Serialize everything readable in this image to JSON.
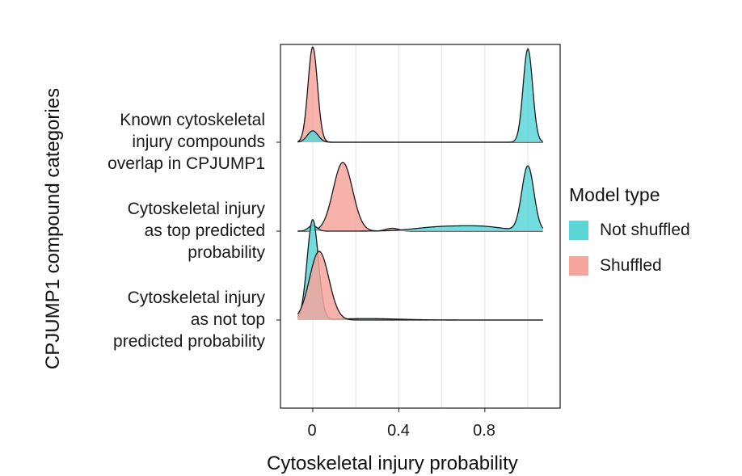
{
  "chart_data": {
    "type": "ridgeline density",
    "title": "",
    "xlabel": "Cytoskeletal injury probability",
    "ylabel": "CPJUMP1 compound categories",
    "x_ticks": [
      "0",
      "0.4",
      "0.8"
    ],
    "x_tick_values": [
      0,
      0.4,
      0.8
    ],
    "xlim": [
      -0.15,
      1.15
    ],
    "grid": "vertical gridlines at 0, 0.2, 0.4, 0.6, 0.8, 1.0",
    "categories": [
      {
        "key": "known",
        "label_lines": [
          "Known cytoskeletal",
          "injury compounds",
          "overlap in CPJUMP1"
        ],
        "ridges": [
          {
            "model": "Shuffled",
            "peaks": [
              {
                "x": 0.0,
                "height": 1.0,
                "sd": 0.022
              }
            ]
          },
          {
            "model": "Not shuffled",
            "peaks": [
              {
                "x": 0.0,
                "height": 0.12,
                "sd": 0.025
              },
              {
                "x": 1.0,
                "height": 0.98,
                "sd": 0.022
              }
            ]
          }
        ]
      },
      {
        "key": "top",
        "label_lines": [
          "Cytoskeletal injury",
          "as top predicted",
          "probability"
        ],
        "ridges": [
          {
            "model": "Shuffled",
            "peaks": [
              {
                "x": 0.14,
                "height": 0.72,
                "sd": 0.045
              },
              {
                "x": 0.37,
                "height": 0.03,
                "sd": 0.03
              }
            ]
          },
          {
            "model": "Not shuffled",
            "peaks": [
              {
                "x": 0.0,
                "height": 0.06,
                "sd": 0.02
              },
              {
                "x": 1.0,
                "height": 0.68,
                "sd": 0.028
              },
              {
                "x": 0.6,
                "height": 0.045,
                "sd": 0.12
              },
              {
                "x": 0.8,
                "height": 0.04,
                "sd": 0.1
              }
            ]
          }
        ]
      },
      {
        "key": "not_top",
        "label_lines": [
          "Cytoskeletal injury",
          "as not top",
          "predicted probability"
        ],
        "ridges": [
          {
            "model": "Not shuffled",
            "peaks": [
              {
                "x": 0.0,
                "height": 1.05,
                "sd": 0.026
              },
              {
                "x": 0.25,
                "height": 0.015,
                "sd": 0.15
              }
            ]
          },
          {
            "model": "Shuffled",
            "peaks": [
              {
                "x": 0.03,
                "height": 0.72,
                "sd": 0.045
              }
            ]
          }
        ]
      }
    ],
    "legend": {
      "title": "Model type",
      "position": "right",
      "items": [
        {
          "label": "Not shuffled",
          "color": "#5ad6d8"
        },
        {
          "label": "Shuffled",
          "color": "#f6a49c"
        }
      ]
    },
    "colors": {
      "Not shuffled": "#5ad6d8",
      "Shuffled": "#f6a49c",
      "outline": "#1a1a1a"
    }
  }
}
